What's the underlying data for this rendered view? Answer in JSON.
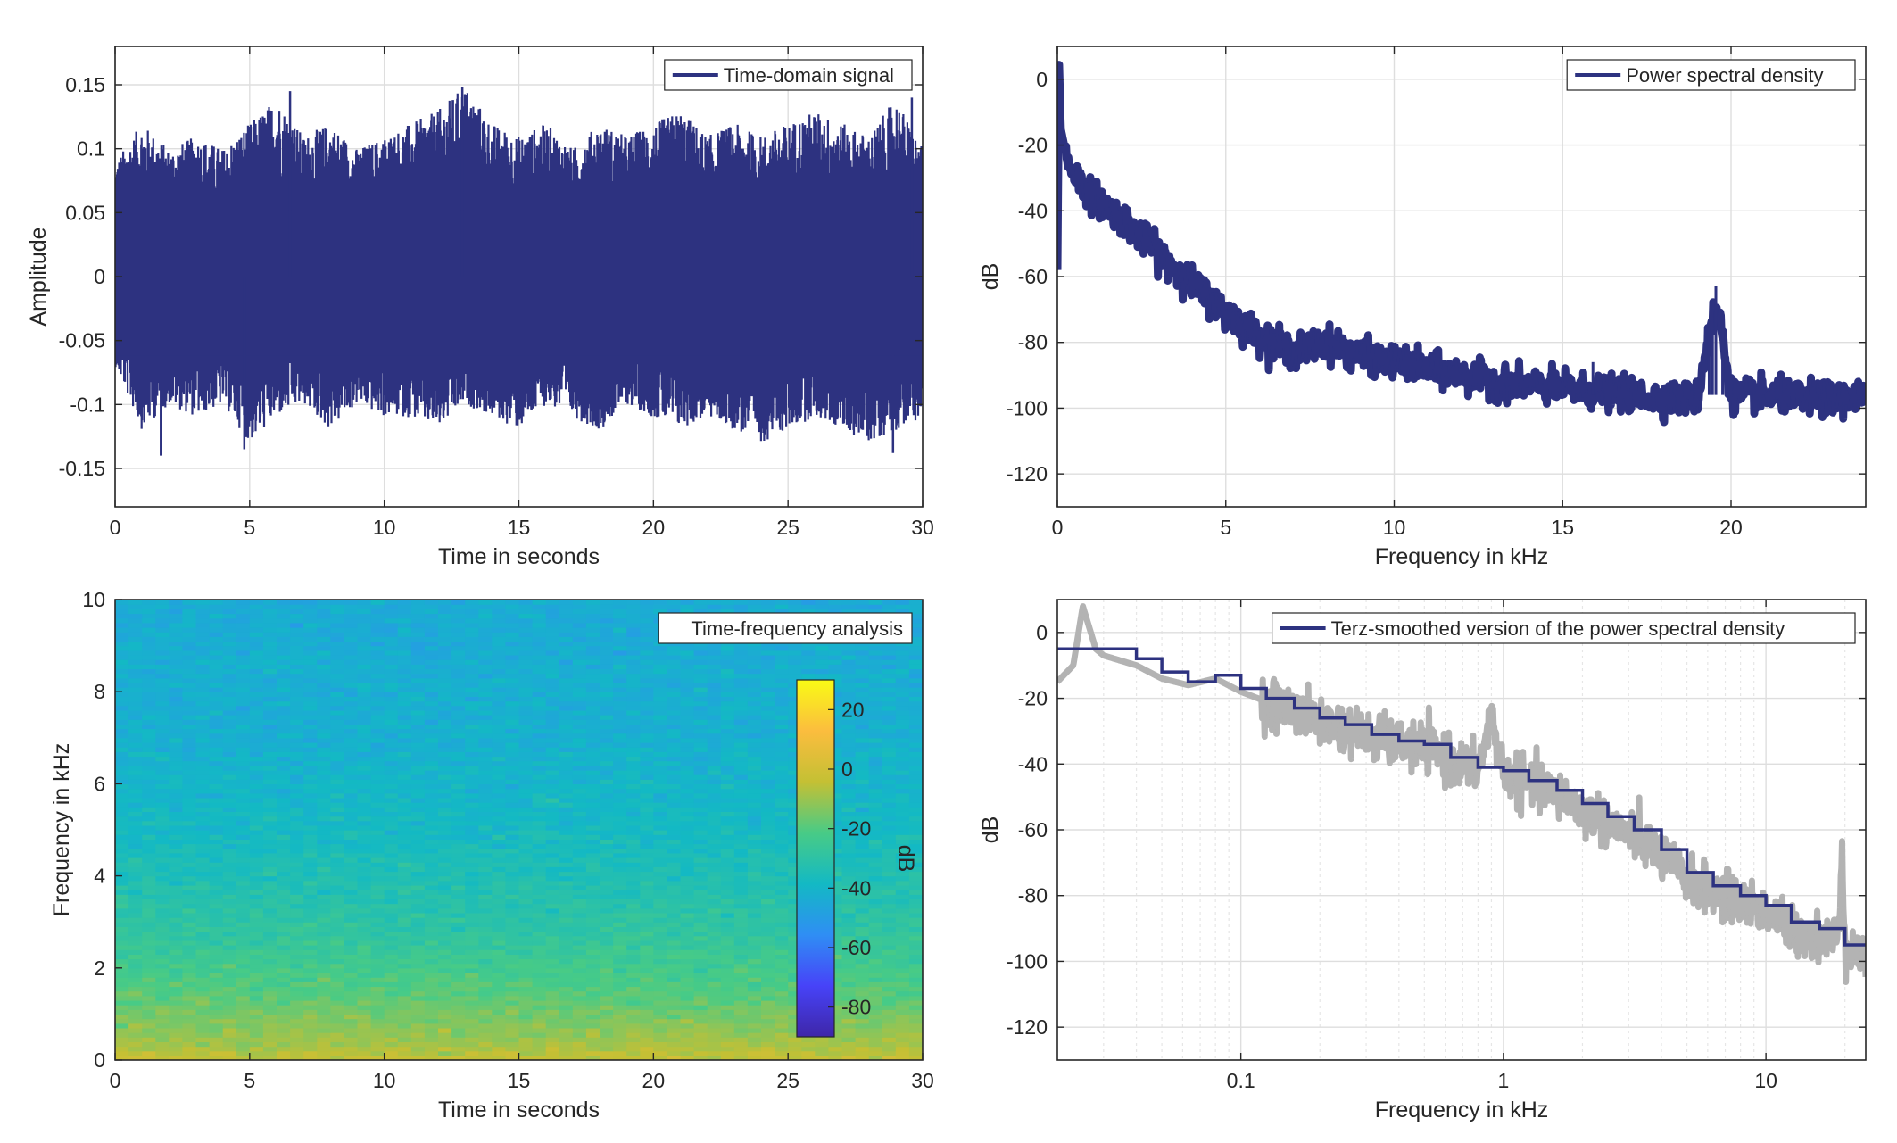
{
  "chart_data": [
    {
      "type": "line",
      "xlabel": "Time in seconds",
      "ylabel": "Amplitude",
      "xlim": [
        0,
        30
      ],
      "ylim": [
        -0.18,
        0.18
      ],
      "xticks": [
        0,
        5,
        10,
        15,
        20,
        25,
        30
      ],
      "xtick_labels": [
        "0",
        "5",
        "10",
        "15",
        "20",
        "25",
        "30"
      ],
      "yticks": [
        -0.15,
        -0.1,
        -0.05,
        0,
        0.05,
        0.1,
        0.15
      ],
      "ytick_labels": [
        "-0.15",
        "-0.1",
        "-0.05",
        "0",
        "0.05",
        "0.1",
        "0.15"
      ],
      "grid": true,
      "legend": "top-right",
      "series": [
        {
          "name": "Time-domain signal",
          "color": "#2d3280",
          "envelope": {
            "x": [
              0,
              1,
              2,
              3,
              4,
              5,
              6,
              7,
              8,
              9,
              10,
              11,
              12,
              13,
              14,
              15,
              16,
              17,
              18,
              19,
              20,
              21,
              22,
              23,
              24,
              25,
              26,
              27,
              28,
              29,
              30
            ],
            "upper": [
              0.09,
              0.12,
              0.1,
              0.11,
              0.1,
              0.12,
              0.14,
              0.11,
              0.12,
              0.1,
              0.11,
              0.12,
              0.13,
              0.15,
              0.12,
              0.11,
              0.12,
              0.1,
              0.12,
              0.11,
              0.12,
              0.13,
              0.11,
              0.12,
              0.11,
              0.12,
              0.13,
              0.12,
              0.11,
              0.14,
              0.1
            ],
            "lower": [
              -0.07,
              -0.12,
              -0.1,
              -0.11,
              -0.1,
              -0.13,
              -0.11,
              -0.1,
              -0.12,
              -0.1,
              -0.11,
              -0.11,
              -0.12,
              -0.1,
              -0.11,
              -0.12,
              -0.1,
              -0.11,
              -0.12,
              -0.1,
              -0.11,
              -0.12,
              -0.11,
              -0.12,
              -0.13,
              -0.12,
              -0.11,
              -0.12,
              -0.13,
              -0.12,
              -0.11
            ]
          },
          "spikes": [
            {
              "x": 6.5,
              "y": 0.145
            },
            {
              "x": 12.9,
              "y": 0.148
            },
            {
              "x": 29.6,
              "y": 0.14
            },
            {
              "x": 1.7,
              "y": -0.14
            },
            {
              "x": 4.8,
              "y": -0.135
            },
            {
              "x": 28.9,
              "y": -0.138
            }
          ]
        }
      ]
    },
    {
      "type": "line",
      "xlabel": "Frequency in kHz",
      "ylabel": "dB",
      "xlim": [
        0,
        24
      ],
      "ylim": [
        -130,
        10
      ],
      "xticks": [
        0,
        5,
        10,
        15,
        20
      ],
      "xtick_labels": [
        "0",
        "5",
        "10",
        "15",
        "20"
      ],
      "yticks": [
        -120,
        -100,
        -80,
        -60,
        -40,
        -20,
        0
      ],
      "ytick_labels": [
        "-120",
        "-100",
        "-80",
        "-60",
        "-40",
        "-20",
        "0"
      ],
      "grid": true,
      "legend": "top-right",
      "series": [
        {
          "name": "Power spectral density",
          "color": "#2d3280",
          "x": [
            0,
            0.05,
            0.1,
            0.3,
            0.6,
            1,
            2,
            3,
            4,
            5,
            6,
            7,
            8,
            9,
            10,
            11,
            12,
            13,
            14,
            15,
            16,
            17,
            18,
            19,
            19.3,
            19.5,
            19.7,
            20,
            21,
            22,
            23,
            24
          ],
          "y": [
            -58,
            5,
            -15,
            -25,
            -30,
            -35,
            -43,
            -53,
            -62,
            -71,
            -78,
            -83,
            -80,
            -84,
            -86,
            -88,
            -90,
            -92,
            -93,
            -94,
            -95,
            -96,
            -97,
            -97,
            -80,
            -70,
            -75,
            -96,
            -96,
            -97,
            -97,
            -97
          ],
          "band": 3
        }
      ]
    },
    {
      "type": "heatmap",
      "xlabel": "Time in seconds",
      "ylabel": "Frequency in kHz",
      "xlim": [
        0,
        30
      ],
      "ylim": [
        0,
        10
      ],
      "xticks": [
        0,
        5,
        10,
        15,
        20,
        25,
        30
      ],
      "xtick_labels": [
        "0",
        "5",
        "10",
        "15",
        "20",
        "25",
        "30"
      ],
      "yticks": [
        0,
        2,
        4,
        6,
        8,
        10
      ],
      "ytick_labels": [
        "0",
        "2",
        "4",
        "6",
        "8",
        "10"
      ],
      "legend": "top-right",
      "legend_label": "Time-frequency analysis",
      "colorbar": {
        "label": "dB",
        "range": [
          -90,
          30
        ],
        "ticks": [
          -80,
          -60,
          -40,
          -20,
          0,
          20
        ],
        "tick_labels": [
          "-80",
          "-60",
          "-40",
          "-20",
          "0",
          "20"
        ],
        "colors": [
          "#3e26a8",
          "#4743f8",
          "#2f8ef4",
          "#13b9c4",
          "#48cb86",
          "#c4c034",
          "#fbbd3e",
          "#f9fb15"
        ]
      },
      "profile": {
        "freq_khz": [
          0,
          0.3,
          0.8,
          1.5,
          2.5,
          3.5,
          5,
          7,
          10
        ],
        "db": [
          -3,
          -8,
          -13,
          -20,
          -27,
          -32,
          -38,
          -42,
          -44
        ]
      }
    },
    {
      "type": "line",
      "xlabel": "Frequency in kHz",
      "ylabel": "dB",
      "xscale": "log",
      "xlim": [
        0.02,
        24
      ],
      "ylim": [
        -130,
        10
      ],
      "xticks": [
        0.1,
        1,
        10
      ],
      "xtick_labels": [
        "0.1",
        "1",
        "10"
      ],
      "yticks": [
        -120,
        -100,
        -80,
        -60,
        -40,
        -20,
        0
      ],
      "ytick_labels": [
        "-120",
        "-100",
        "-80",
        "-60",
        "-40",
        "-20",
        "0"
      ],
      "grid": true,
      "legend": "top-right",
      "series": [
        {
          "name": "Terz-smoothed version of the power spectral density",
          "color": "#2d3280",
          "style": "step",
          "x": [
            0.02,
            0.04,
            0.05,
            0.063,
            0.08,
            0.1,
            0.125,
            0.16,
            0.2,
            0.25,
            0.315,
            0.4,
            0.5,
            0.63,
            0.8,
            1,
            1.25,
            1.6,
            2,
            2.5,
            3.15,
            4,
            5,
            6.3,
            8,
            10,
            12.5,
            16,
            20,
            24
          ],
          "y": [
            -5,
            -8,
            -12,
            -15,
            -13,
            -17,
            -20,
            -23,
            -26,
            -28,
            -31,
            -33,
            -34,
            -38,
            -41,
            -42,
            -45,
            -48,
            -52,
            -56,
            -60,
            -66,
            -73,
            -77,
            -80,
            -83,
            -88,
            -90,
            -95,
            -95
          ]
        },
        {
          "name": "",
          "color": "#b3b3b3",
          "x": [
            0.02,
            0.023,
            0.025,
            0.028,
            0.03,
            0.04,
            0.05,
            0.063,
            0.08,
            0.1,
            0.125,
            0.16,
            0.2,
            0.25,
            0.315,
            0.4,
            0.5,
            0.63,
            0.8,
            0.9,
            1,
            1.25,
            1.6,
            2,
            2.5,
            3.15,
            4,
            5,
            6.3,
            8,
            10,
            12.5,
            16,
            19,
            19.5,
            20,
            24
          ],
          "y": [
            -15,
            -10,
            8,
            -5,
            -7,
            -10,
            -14,
            -16,
            -14,
            -18,
            -21,
            -24,
            -27,
            -29,
            -32,
            -34,
            -35,
            -39,
            -42,
            -25,
            -43,
            -46,
            -49,
            -54,
            -58,
            -62,
            -68,
            -75,
            -79,
            -82,
            -85,
            -90,
            -93,
            -93,
            -63,
            -95,
            -100
          ],
          "band": 4
        }
      ]
    }
  ]
}
